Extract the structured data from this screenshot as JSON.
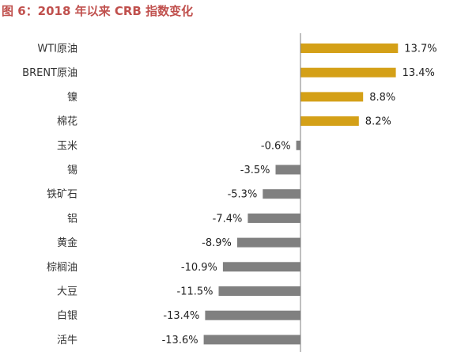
{
  "figure": {
    "title": "图 6：2018 年以来 CRB 指数变化"
  },
  "colors": {
    "title": "#c0504d",
    "positive": "#d4a017",
    "negative": "#808080",
    "axis": "#7f7f7f"
  },
  "chart_data": {
    "type": "bar",
    "orientation": "horizontal",
    "title": "图 6：2018 年以来 CRB 指数变化",
    "categories": [
      "WTI原油",
      "BRENT原油",
      "镍",
      "棉花",
      "玉米",
      "锡",
      "铁矿石",
      "铝",
      "黄金",
      "棕榈油",
      "大豆",
      "白银",
      "活牛"
    ],
    "values": [
      13.7,
      13.4,
      8.8,
      8.2,
      -0.6,
      -3.5,
      -5.3,
      -7.4,
      -8.9,
      -10.9,
      -11.5,
      -13.4,
      -13.6
    ],
    "value_labels": [
      "13.7%",
      "13.4%",
      "8.8%",
      "8.2%",
      "-0.6%",
      "-3.5%",
      "-5.3%",
      "-7.4%",
      "-8.9%",
      "-10.9%",
      "-11.5%",
      "-13.4%",
      "-13.6%"
    ],
    "unit": "%",
    "xlabel": "",
    "ylabel": "",
    "xlim": [
      -15,
      15
    ],
    "grid": false,
    "legend": "none"
  }
}
